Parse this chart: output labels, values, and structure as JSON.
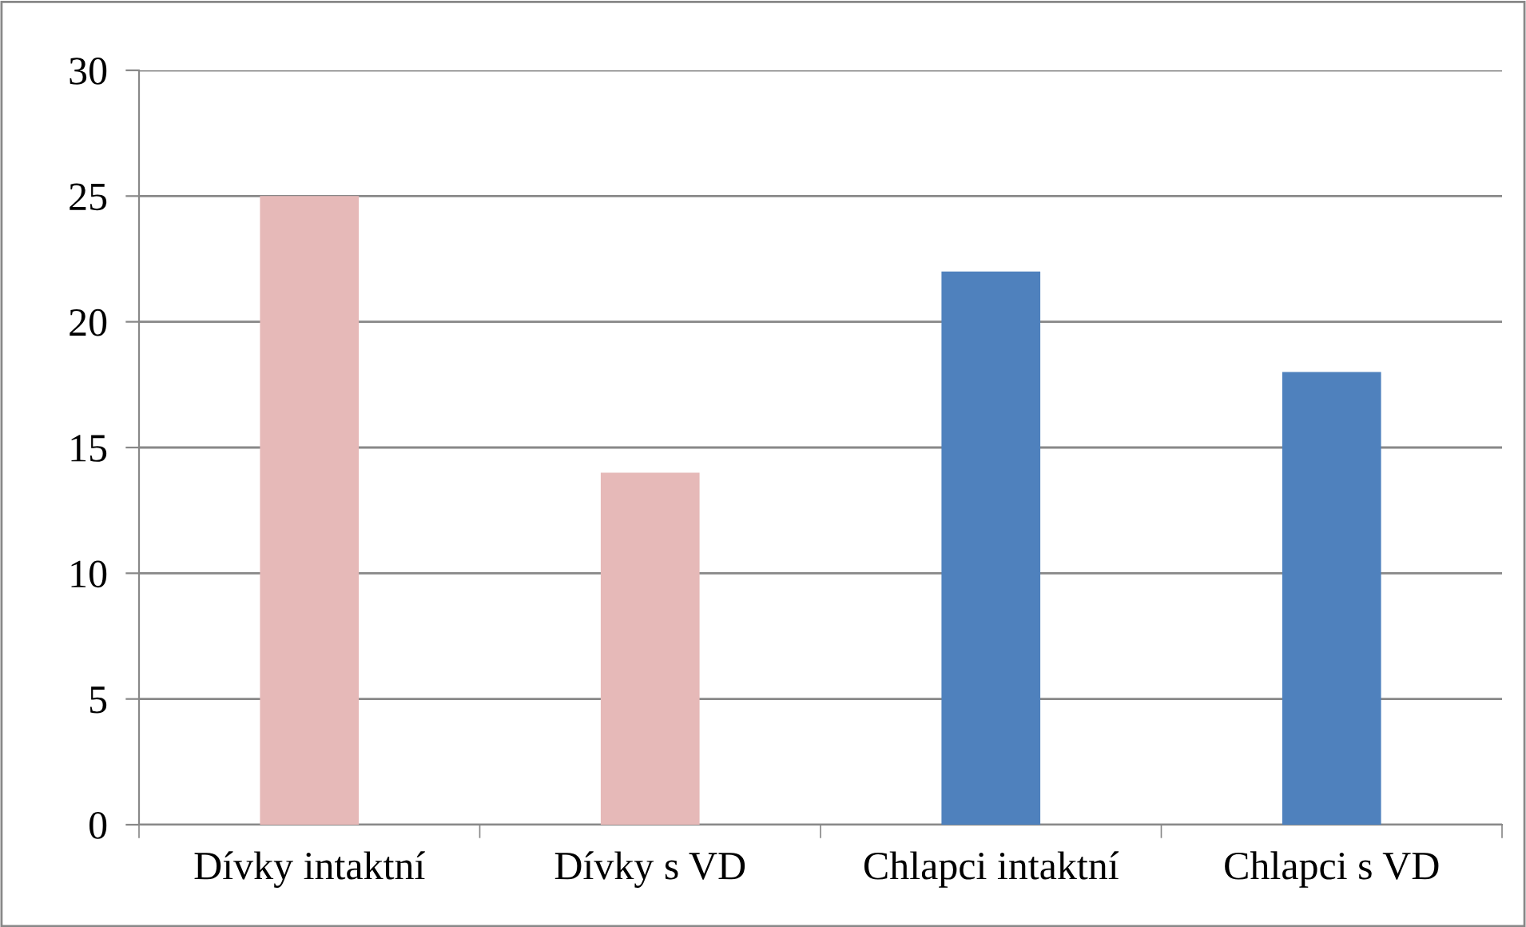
{
  "chart_data": {
    "type": "bar",
    "categories": [
      "Dívky intaktní",
      "Dívky s VD",
      "Chlapci intaktní",
      "Chlapci s VD"
    ],
    "values": [
      25,
      14,
      22,
      18
    ],
    "colors": [
      "#e6b9b8",
      "#e6b9b8",
      "#4f81bd",
      "#4f81bd"
    ],
    "ylim": [
      0,
      30
    ],
    "yticks": [
      0,
      5,
      10,
      15,
      20,
      25,
      30
    ],
    "grid": "y"
  }
}
